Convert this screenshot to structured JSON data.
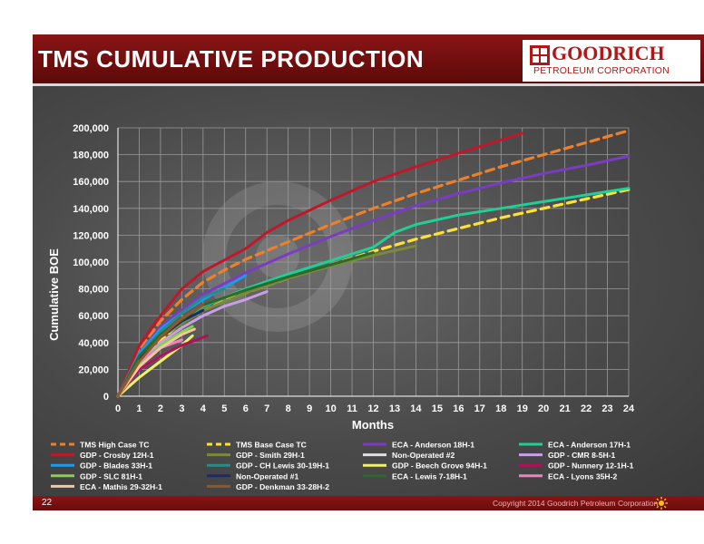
{
  "slide": {
    "title": "TMS CUMULATIVE PRODUCTION",
    "logo": {
      "name": "GOODRICH",
      "subtitle": "PETROLEUM CORPORATION",
      "icon": "goodrich-logo-icon"
    },
    "page_number": "22",
    "copyright": "Copyright 2014 Goodrich Petroleum Corporation",
    "colors": {
      "header_red": "#8a1414",
      "panel_gray": "#4a4a4a",
      "text_white": "#ffffff"
    }
  },
  "chart_data": {
    "type": "line",
    "xlabel": "Months",
    "ylabel": "Cumulative BOE",
    "xlim": [
      0,
      24
    ],
    "ylim": [
      0,
      200000
    ],
    "x_ticks": [
      "0",
      "1",
      "2",
      "3",
      "4",
      "5",
      "6",
      "7",
      "8",
      "9",
      "10",
      "11",
      "12",
      "13",
      "14",
      "15",
      "16",
      "17",
      "18",
      "19",
      "20",
      "21",
      "22",
      "23",
      "24"
    ],
    "y_ticks": [
      "0",
      "20,000",
      "40,000",
      "60,000",
      "80,000",
      "100,000",
      "120,000",
      "140,000",
      "160,000",
      "180,000",
      "200,000"
    ],
    "grid": true,
    "legend_position": "bottom",
    "series": [
      {
        "name": "TMS High Case TC",
        "color": "#f07f2a",
        "dashed": true,
        "points": [
          [
            0,
            0
          ],
          [
            1,
            34000
          ],
          [
            2,
            56000
          ],
          [
            3,
            72000
          ],
          [
            4,
            85000
          ],
          [
            5,
            94000
          ],
          [
            6,
            102000
          ],
          [
            8,
            115000
          ],
          [
            10,
            128000
          ],
          [
            12,
            140000
          ],
          [
            14,
            151000
          ],
          [
            16,
            161000
          ],
          [
            18,
            171000
          ],
          [
            20,
            180000
          ],
          [
            22,
            189000
          ],
          [
            24,
            198000
          ]
        ]
      },
      {
        "name": "TMS Base Case TC",
        "color": "#ffe135",
        "dashed": true,
        "points": [
          [
            0,
            0
          ],
          [
            1,
            26000
          ],
          [
            2,
            42000
          ],
          [
            3,
            55000
          ],
          [
            4,
            64000
          ],
          [
            5,
            71000
          ],
          [
            6,
            77000
          ],
          [
            8,
            88000
          ],
          [
            10,
            98000
          ],
          [
            12,
            108000
          ],
          [
            14,
            117000
          ],
          [
            16,
            125000
          ],
          [
            18,
            133000
          ],
          [
            20,
            140000
          ],
          [
            22,
            147000
          ],
          [
            24,
            154000
          ]
        ]
      },
      {
        "name": "ECA - Anderson 18H-1",
        "color": "#7a3cc2",
        "dashed": false,
        "points": [
          [
            0,
            0
          ],
          [
            1,
            32000
          ],
          [
            2,
            52000
          ],
          [
            4,
            76000
          ],
          [
            6,
            92000
          ],
          [
            8,
            106000
          ],
          [
            10,
            119000
          ],
          [
            12,
            131000
          ],
          [
            14,
            142000
          ],
          [
            16,
            151000
          ],
          [
            18,
            159000
          ],
          [
            20,
            166000
          ],
          [
            22,
            172000
          ],
          [
            24,
            179000
          ]
        ]
      },
      {
        "name": "ECA - Anderson 17H-1",
        "color": "#1fcf96",
        "dashed": false,
        "points": [
          [
            0,
            0
          ],
          [
            1,
            28000
          ],
          [
            2,
            46000
          ],
          [
            4,
            67000
          ],
          [
            6,
            80000
          ],
          [
            8,
            91000
          ],
          [
            10,
            101000
          ],
          [
            12,
            111000
          ],
          [
            13,
            122000
          ],
          [
            14,
            128000
          ],
          [
            16,
            135000
          ],
          [
            18,
            140000
          ],
          [
            20,
            145000
          ],
          [
            22,
            150000
          ],
          [
            24,
            155000
          ]
        ]
      },
      {
        "name": "GDP - Crosby 12H-1",
        "color": "#c0182a",
        "dashed": false,
        "points": [
          [
            0,
            0
          ],
          [
            1,
            38000
          ],
          [
            2,
            60000
          ],
          [
            3,
            80000
          ],
          [
            4,
            93000
          ],
          [
            6,
            110000
          ],
          [
            7,
            122000
          ],
          [
            8,
            131000
          ],
          [
            10,
            146000
          ],
          [
            12,
            160000
          ],
          [
            14,
            171000
          ],
          [
            16,
            181000
          ],
          [
            18,
            191000
          ],
          [
            19,
            196000
          ]
        ]
      },
      {
        "name": "GDP - Smith 29H-1",
        "color": "#7a8a3a",
        "dashed": false,
        "points": [
          [
            0,
            0
          ],
          [
            1,
            26000
          ],
          [
            2,
            44000
          ],
          [
            4,
            64000
          ],
          [
            6,
            77000
          ],
          [
            8,
            88000
          ],
          [
            10,
            97000
          ],
          [
            12,
            105000
          ],
          [
            14,
            112000
          ]
        ]
      },
      {
        "name": "Non-Operated #2",
        "color": "#e0e0e0",
        "dashed": false,
        "points": [
          [
            0,
            0
          ],
          [
            1,
            20000
          ],
          [
            2,
            30000
          ],
          [
            2.5,
            34000
          ]
        ]
      },
      {
        "name": "GDP - CMR 8-5H-1",
        "color": "#c9a0e8",
        "dashed": false,
        "points": [
          [
            0,
            0
          ],
          [
            1,
            24000
          ],
          [
            2,
            40000
          ],
          [
            3,
            51000
          ],
          [
            4,
            60000
          ],
          [
            5,
            67000
          ],
          [
            6,
            72000
          ],
          [
            7,
            78000
          ]
        ]
      },
      {
        "name": "GDP - Blades 33H-1",
        "color": "#1e9be8",
        "dashed": false,
        "points": [
          [
            0,
            0
          ],
          [
            1,
            32000
          ],
          [
            2,
            50000
          ],
          [
            3,
            62000
          ],
          [
            4,
            72000
          ],
          [
            5,
            81000
          ],
          [
            6,
            90000
          ]
        ]
      },
      {
        "name": "GDP - CH Lewis 30-19H-1",
        "color": "#2a8a8a",
        "dashed": false,
        "points": [
          [
            0,
            0
          ],
          [
            1,
            30000
          ],
          [
            2,
            48000
          ],
          [
            3,
            62000
          ],
          [
            4,
            74000
          ],
          [
            5,
            80000
          ]
        ]
      },
      {
        "name": "GDP - Beech Grove 94H-1",
        "color": "#f0f070",
        "dashed": false,
        "points": [
          [
            0,
            0
          ],
          [
            1,
            14000
          ],
          [
            2,
            26000
          ],
          [
            3,
            38000
          ],
          [
            3.5,
            45000
          ]
        ]
      },
      {
        "name": "GDP - Nunnery 12-1H-1",
        "color": "#b0105a",
        "dashed": false,
        "points": [
          [
            0,
            0
          ],
          [
            1,
            20000
          ],
          [
            2,
            30000
          ],
          [
            3,
            38000
          ],
          [
            4.2,
            45000
          ]
        ]
      },
      {
        "name": "GDP - SLC 81H-1",
        "color": "#8ad04a",
        "dashed": false,
        "points": [
          [
            0,
            0
          ],
          [
            1,
            24000
          ],
          [
            2,
            38000
          ],
          [
            3,
            48000
          ],
          [
            3.5,
            52000
          ]
        ]
      },
      {
        "name": "Non-Operated #1",
        "color": "#1a2a6a",
        "dashed": false,
        "points": [
          [
            0,
            0
          ],
          [
            1,
            28000
          ],
          [
            2,
            44000
          ],
          [
            3,
            56000
          ],
          [
            4,
            64000
          ]
        ]
      },
      {
        "name": "ECA - Lewis 7-18H-1",
        "color": "#2a6a2a",
        "dashed": false,
        "points": [
          [
            0,
            0
          ],
          [
            1,
            30000
          ],
          [
            2,
            46000
          ],
          [
            4,
            68000
          ],
          [
            6,
            79000
          ],
          [
            8,
            89000
          ],
          [
            10,
            98000
          ],
          [
            12,
            107000
          ]
        ]
      },
      {
        "name": "ECA - Lyons 35H-2",
        "color": "#f080c0",
        "dashed": false,
        "points": [
          [
            0,
            0
          ],
          [
            1,
            26000
          ],
          [
            2,
            36000
          ],
          [
            3,
            42000
          ]
        ]
      },
      {
        "name": "ECA - Mathis 29-32H-1",
        "color": "#f0c8a0",
        "dashed": false,
        "points": [
          [
            0,
            0
          ],
          [
            1,
            22000
          ],
          [
            2,
            36000
          ],
          [
            3,
            46000
          ],
          [
            3.6,
            50000
          ]
        ]
      },
      {
        "name": "GDP - Denkman 33-28H-2",
        "color": "#8a5a2a",
        "dashed": false,
        "points": [
          [
            0,
            0
          ],
          [
            1,
            26000
          ],
          [
            2,
            44000
          ],
          [
            3,
            58000
          ],
          [
            4,
            68000
          ]
        ]
      }
    ]
  }
}
